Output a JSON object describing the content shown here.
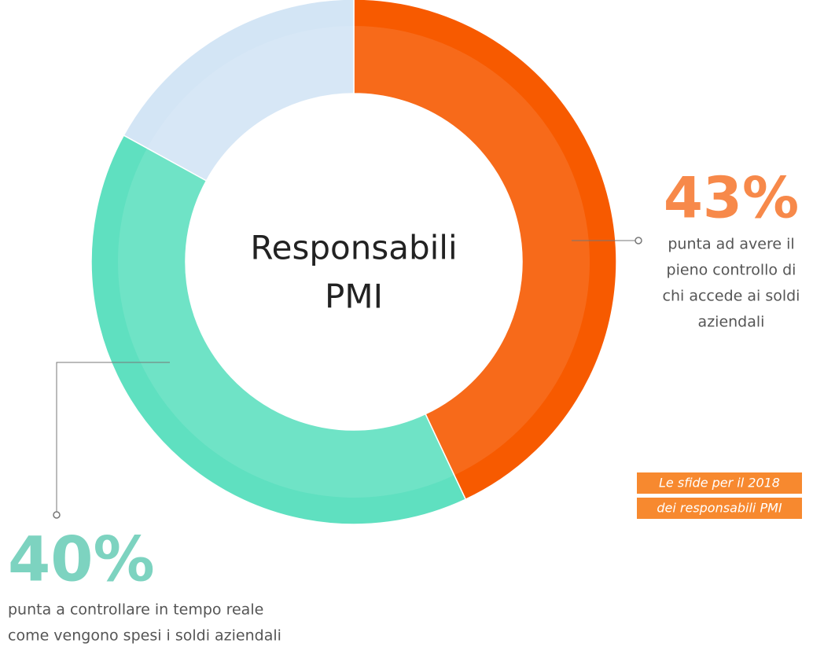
{
  "chart_data": {
    "type": "donut",
    "center_label": [
      "Responsabili",
      "PMI"
    ],
    "categories": [
      null,
      null,
      null
    ],
    "values": [
      43,
      40,
      17
    ],
    "value_labels": [
      "43%",
      "40%",
      null
    ],
    "colors": [
      "#f75a00",
      "#5fe0c0",
      "#d3e5f5"
    ],
    "descriptions": [
      [
        "punta ad avere il",
        "pieno controllo di",
        "chi accede ai soldi",
        "aziendali"
      ],
      [
        "punta a controllare in tempo reale",
        "come vengono spesi i soldi aziendali"
      ],
      null
    ],
    "label_colors": [
      "#f7894a",
      "#7dd3c0",
      null
    ],
    "badge": [
      "Le sfide per il 2018",
      "dei responsabili PMI"
    ]
  }
}
